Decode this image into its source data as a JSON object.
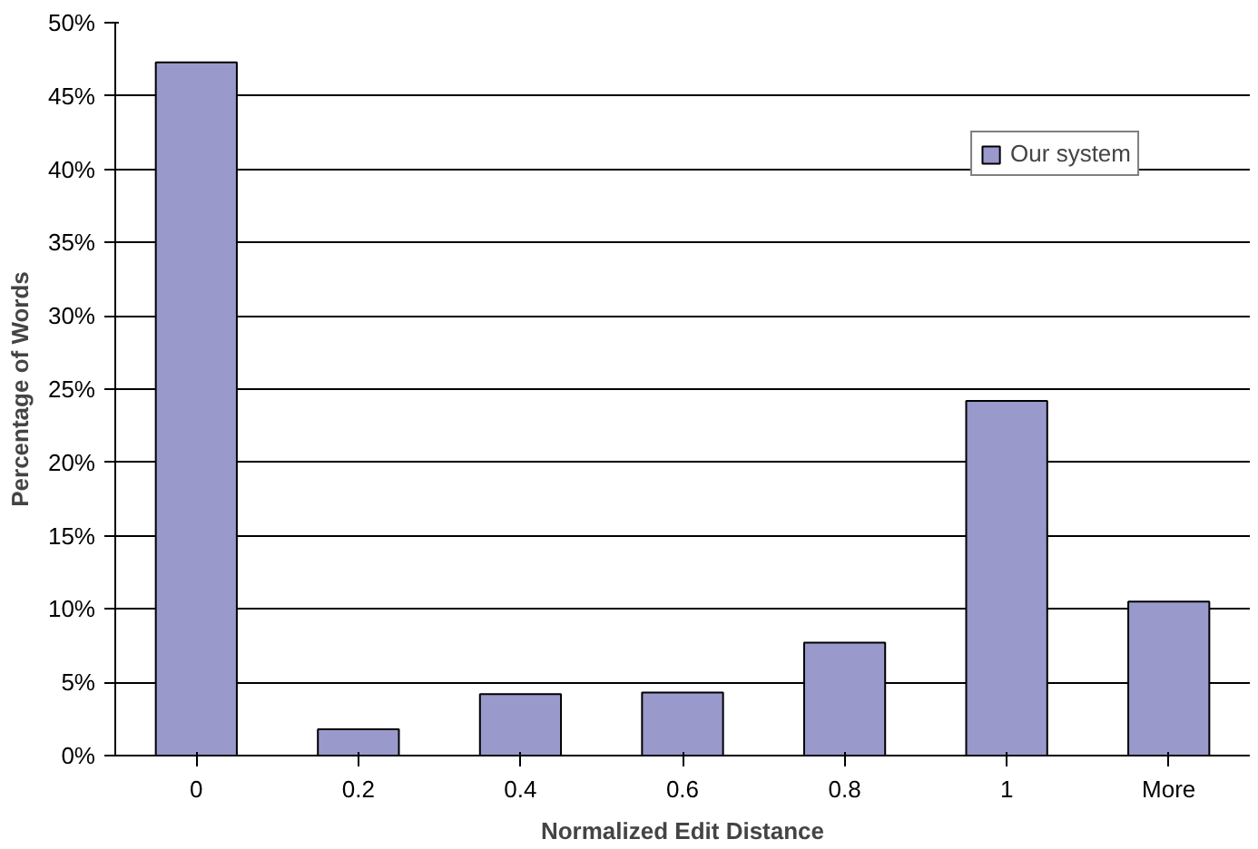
{
  "chart_data": {
    "type": "bar",
    "xlabel": "Normalized Edit Distance",
    "ylabel": "Percentage of Words",
    "categories": [
      "0",
      "0.2",
      "0.4",
      "0.6",
      "0.8",
      "1",
      "More"
    ],
    "series": [
      {
        "name": "Our system",
        "color": "#9999cc",
        "values": [
          47.3,
          1.8,
          4.2,
          4.3,
          7.7,
          24.2,
          10.5
        ]
      }
    ],
    "ylim": [
      0,
      50
    ],
    "yticks": [
      {
        "value": 0,
        "label": "0%"
      },
      {
        "value": 5,
        "label": "5%"
      },
      {
        "value": 10,
        "label": "10%"
      },
      {
        "value": 15,
        "label": "15%"
      },
      {
        "value": 20,
        "label": "20%"
      },
      {
        "value": 25,
        "label": "25%"
      },
      {
        "value": 30,
        "label": "30%"
      },
      {
        "value": 35,
        "label": "35%"
      },
      {
        "value": 40,
        "label": "40%"
      },
      {
        "value": 45,
        "label": "45%"
      },
      {
        "value": 50,
        "label": "50%"
      }
    ],
    "grid": "y",
    "legend": "top right"
  }
}
